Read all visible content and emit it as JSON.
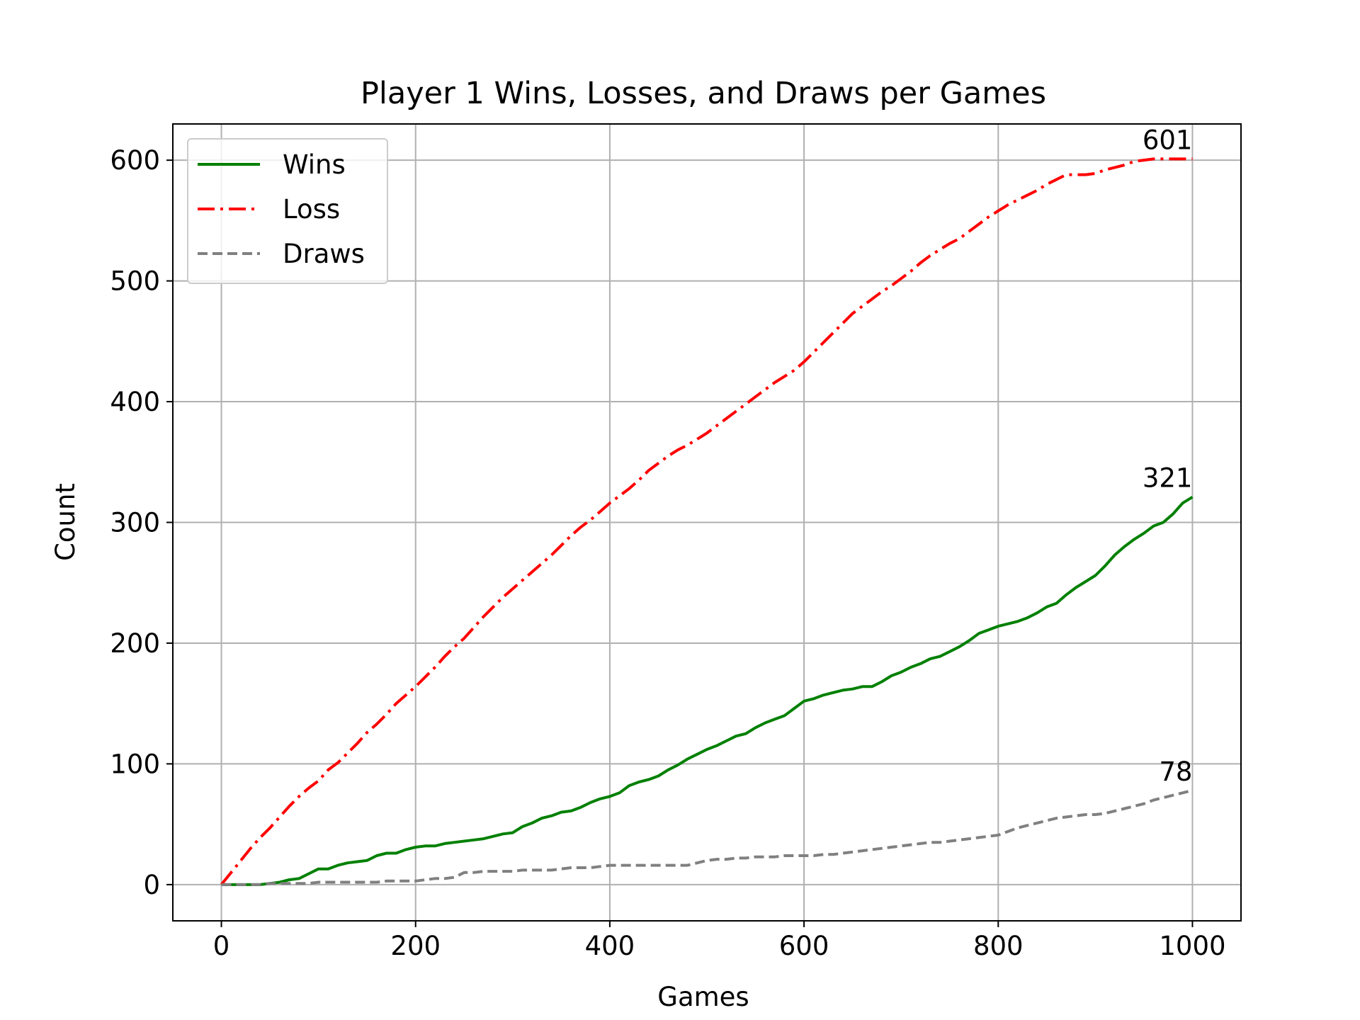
{
  "chart_data": {
    "type": "line",
    "title": "Player 1 Wins, Losses, and Draws per Games",
    "xlabel": "Games",
    "ylabel": "Count",
    "xlim": [
      -50,
      1050
    ],
    "ylim": [
      -30,
      630
    ],
    "xticks": [
      0,
      200,
      400,
      600,
      800,
      1000
    ],
    "yticks": [
      0,
      100,
      200,
      300,
      400,
      500,
      600
    ],
    "grid": true,
    "legend": "top-left",
    "x": [
      0,
      10,
      20,
      30,
      40,
      50,
      60,
      70,
      80,
      90,
      100,
      110,
      120,
      130,
      140,
      150,
      160,
      170,
      180,
      190,
      200,
      210,
      220,
      230,
      240,
      250,
      260,
      270,
      280,
      290,
      300,
      310,
      320,
      330,
      340,
      350,
      360,
      370,
      380,
      390,
      400,
      410,
      420,
      430,
      440,
      450,
      460,
      470,
      480,
      490,
      500,
      510,
      520,
      530,
      540,
      550,
      560,
      570,
      580,
      590,
      600,
      610,
      620,
      630,
      640,
      650,
      660,
      670,
      680,
      690,
      700,
      710,
      720,
      730,
      740,
      750,
      760,
      770,
      780,
      790,
      800,
      810,
      820,
      830,
      840,
      850,
      860,
      870,
      880,
      890,
      900,
      910,
      920,
      930,
      940,
      950,
      960,
      970,
      980,
      990,
      1000
    ],
    "series": [
      {
        "name": "Wins",
        "color": "#008000",
        "style": "solid",
        "end_label": "321",
        "values": [
          0,
          0,
          0,
          0,
          0,
          1,
          2,
          4,
          5,
          9,
          13,
          13,
          16,
          18,
          19,
          20,
          24,
          26,
          26,
          29,
          31,
          32,
          32,
          34,
          35,
          36,
          37,
          38,
          40,
          42,
          43,
          48,
          51,
          55,
          57,
          60,
          61,
          64,
          68,
          71,
          73,
          76,
          82,
          85,
          87,
          90,
          95,
          99,
          104,
          108,
          112,
          115,
          119,
          123,
          125,
          130,
          134,
          137,
          140,
          146,
          152,
          154,
          157,
          159,
          161,
          162,
          164,
          164,
          168,
          173,
          176,
          180,
          183,
          187,
          189,
          193,
          197,
          202,
          208,
          211,
          214,
          216,
          218,
          221,
          225,
          230,
          233,
          240,
          246,
          251,
          256,
          264,
          273,
          280,
          286,
          291,
          297,
          300,
          307,
          316,
          321
        ]
      },
      {
        "name": "Loss",
        "color": "#ff0000",
        "style": "dashdot",
        "end_label": "601",
        "values": [
          0,
          10,
          20,
          30,
          39,
          47,
          56,
          65,
          73,
          80,
          86,
          95,
          101,
          109,
          117,
          126,
          133,
          141,
          150,
          157,
          164,
          172,
          180,
          189,
          197,
          204,
          213,
          222,
          230,
          238,
          245,
          252,
          259,
          266,
          273,
          281,
          289,
          296,
          302,
          309,
          316,
          322,
          328,
          335,
          343,
          349,
          355,
          360,
          364,
          369,
          374,
          380,
          386,
          392,
          398,
          404,
          410,
          416,
          421,
          426,
          433,
          441,
          449,
          457,
          465,
          473,
          479,
          485,
          491,
          496,
          502,
          508,
          515,
          521,
          526,
          531,
          535,
          541,
          547,
          553,
          558,
          563,
          567,
          571,
          575,
          580,
          584,
          588,
          588,
          588,
          589,
          592,
          594,
          596,
          599,
          600,
          601,
          601,
          601,
          601,
          601
        ]
      },
      {
        "name": "Draws",
        "color": "#808080",
        "style": "dashed",
        "end_label": "78",
        "values": [
          0,
          0,
          0,
          0,
          0,
          1,
          1,
          1,
          1,
          1,
          2,
          2,
          2,
          2,
          2,
          2,
          2,
          3,
          3,
          3,
          3,
          4,
          5,
          5,
          6,
          10,
          10,
          11,
          11,
          11,
          11,
          12,
          12,
          12,
          12,
          13,
          14,
          14,
          14,
          15,
          16,
          16,
          16,
          16,
          16,
          16,
          16,
          16,
          16,
          18,
          20,
          21,
          21,
          22,
          22,
          23,
          23,
          23,
          24,
          24,
          24,
          24,
          25,
          25,
          26,
          27,
          28,
          29,
          30,
          31,
          32,
          33,
          34,
          35,
          35,
          36,
          37,
          38,
          39,
          40,
          41,
          44,
          47,
          49,
          51,
          53,
          55,
          56,
          57,
          58,
          58,
          59,
          61,
          63,
          65,
          67,
          70,
          72,
          74,
          76,
          78
        ]
      }
    ]
  }
}
